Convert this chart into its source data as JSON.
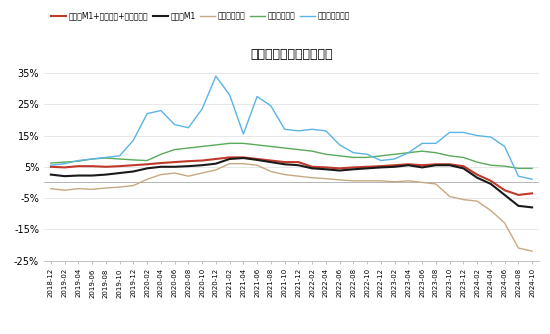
{
  "title": "货币和存款余额同比增速",
  "legend_labels": [
    "旧口径M1+居民活期+支付备付金",
    "旧口径M1",
    "企业活期存款",
    "居民活期存款",
    "支付机构备付金"
  ],
  "colors": [
    "#c0392b",
    "#1a1a1a",
    "#c8a882",
    "#5aaa5a",
    "#5ab4e5"
  ],
  "ylim": [
    -25,
    37
  ],
  "yticks": [
    -25,
    -15,
    -5,
    5,
    15,
    25,
    35
  ],
  "ytick_labels": [
    "-25%",
    "-15%",
    "-5%",
    "5%",
    "15%",
    "25%",
    "35%"
  ],
  "dates": [
    "2018-12",
    "2019-02",
    "2019-04",
    "2019-06",
    "2019-08",
    "2019-10",
    "2019-12",
    "2020-02",
    "2020-04",
    "2020-06",
    "2020-08",
    "2020-10",
    "2020-12",
    "2021-02",
    "2021-04",
    "2021-06",
    "2021-08",
    "2021-10",
    "2021-12",
    "2022-02",
    "2022-04",
    "2022-06",
    "2022-08",
    "2022-10",
    "2022-12",
    "2023-02",
    "2023-04",
    "2023-06",
    "2023-08",
    "2023-10",
    "2023-12",
    "2024-02",
    "2024-04",
    "2024-06",
    "2024-08",
    "2024-10"
  ],
  "series": {
    "旧口径M1+居民活期+支付备付金": [
      5.0,
      4.8,
      5.2,
      5.2,
      5.0,
      5.2,
      5.5,
      5.8,
      6.2,
      6.5,
      6.8,
      7.0,
      7.5,
      8.0,
      8.0,
      7.5,
      7.0,
      6.5,
      6.5,
      5.0,
      4.8,
      4.5,
      4.8,
      5.0,
      5.2,
      5.5,
      5.8,
      5.5,
      5.8,
      5.8,
      5.2,
      2.5,
      0.5,
      -2.5,
      -4.0,
      -3.5
    ],
    "旧口径M1": [
      2.5,
      2.0,
      2.2,
      2.2,
      2.5,
      3.0,
      3.5,
      4.5,
      5.0,
      5.0,
      5.2,
      5.5,
      6.0,
      7.5,
      7.8,
      7.2,
      6.5,
      5.8,
      5.5,
      4.5,
      4.2,
      3.8,
      4.2,
      4.5,
      4.8,
      5.0,
      5.5,
      4.8,
      5.5,
      5.5,
      4.5,
      1.5,
      -0.5,
      -4.0,
      -7.5,
      -8.0
    ],
    "企业活期存款": [
      -2.0,
      -2.5,
      -2.0,
      -2.2,
      -1.8,
      -1.5,
      -1.0,
      1.0,
      2.5,
      3.0,
      2.0,
      3.0,
      4.0,
      6.0,
      6.0,
      5.5,
      3.5,
      2.5,
      2.0,
      1.5,
      1.2,
      0.8,
      0.5,
      0.5,
      0.5,
      0.2,
      0.5,
      0.0,
      -0.5,
      -4.5,
      -5.5,
      -6.0,
      -9.0,
      -13.0,
      -21.0,
      -22.0
    ],
    "居民活期存款": [
      6.2,
      6.5,
      6.8,
      7.5,
      7.8,
      7.5,
      7.2,
      7.0,
      9.0,
      10.5,
      11.0,
      11.5,
      12.0,
      12.5,
      12.5,
      12.0,
      11.5,
      11.0,
      10.5,
      10.0,
      9.0,
      8.5,
      8.0,
      8.0,
      8.5,
      9.0,
      9.5,
      10.0,
      9.5,
      8.5,
      8.0,
      6.5,
      5.5,
      5.2,
      4.5,
      4.5
    ],
    "支付机构备付金": [
      5.5,
      6.0,
      7.0,
      7.5,
      8.0,
      8.5,
      13.5,
      22.0,
      23.0,
      18.5,
      17.5,
      23.5,
      34.0,
      28.0,
      15.5,
      27.5,
      24.5,
      17.0,
      16.5,
      17.0,
      16.5,
      12.0,
      9.5,
      9.0,
      7.0,
      7.5,
      9.5,
      12.5,
      12.5,
      16.0,
      16.0,
      15.0,
      14.5,
      11.5,
      2.0,
      1.0
    ]
  }
}
